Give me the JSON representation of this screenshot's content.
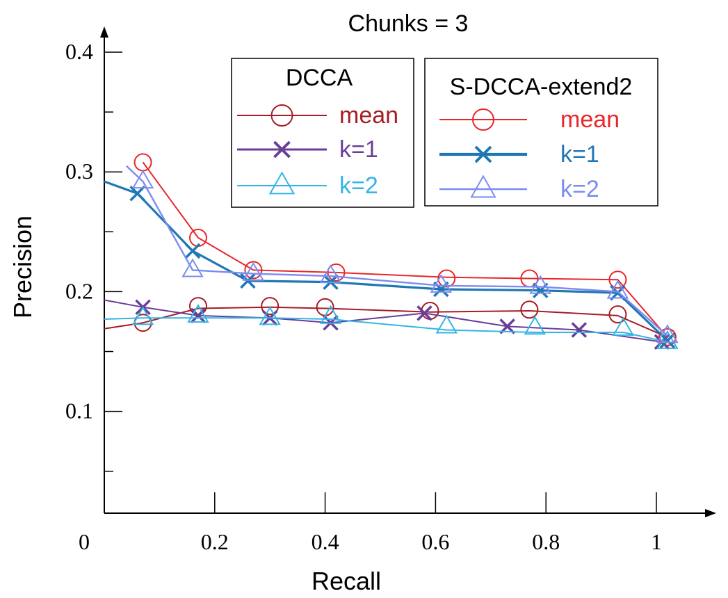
{
  "chart_data": {
    "type": "line",
    "title": "Chunks = 3",
    "xlabel": "Recall",
    "ylabel": "Precision",
    "xlim": [
      0,
      1.05
    ],
    "ylim": [
      0.015,
      0.42
    ],
    "xticks": [
      0,
      0.2,
      0.4,
      0.6,
      0.8,
      1
    ],
    "xtick_labels": [
      "0",
      "0.2",
      "0.4",
      "0.6",
      "0.8",
      "1"
    ],
    "yticks": [
      0.1,
      0.2,
      0.3,
      0.4
    ],
    "ytick_labels": [
      "0.1",
      "0.2",
      "0.3",
      "0.4"
    ],
    "grid": false,
    "legend_groups": [
      {
        "title": "DCCA",
        "entries": [
          {
            "label": "mean",
            "color": "#a51c24",
            "marker": "circle"
          },
          {
            "label": "k=1",
            "color": "#6a3d9a",
            "marker": "x"
          },
          {
            "label": "k=2",
            "color": "#33b5e5",
            "marker": "triangle"
          }
        ]
      },
      {
        "title": "S-DCCA-extend2",
        "entries": [
          {
            "label": "mean",
            "color": "#e8272b",
            "marker": "circle"
          },
          {
            "label": "k=1",
            "color": "#1f77b4",
            "marker": "x"
          },
          {
            "label": "k=2",
            "color": "#7b8cf0",
            "marker": "triangle"
          }
        ]
      }
    ],
    "series": [
      {
        "group": "DCCA",
        "name": "mean",
        "color": "#a51c24",
        "marker": "circle",
        "width": 2,
        "points": [
          [
            0.0,
            0.169
          ],
          [
            0.07,
            0.174
          ],
          [
            0.17,
            0.186
          ],
          [
            0.3,
            0.187
          ],
          [
            0.4,
            0.186
          ],
          [
            0.59,
            0.183
          ],
          [
            0.77,
            0.184
          ],
          [
            0.93,
            0.18
          ],
          [
            1.02,
            0.162
          ]
        ],
        "markers": [
          [
            0.07,
            0.174
          ],
          [
            0.17,
            0.188
          ],
          [
            0.3,
            0.188
          ],
          [
            0.4,
            0.187
          ],
          [
            0.59,
            0.184
          ],
          [
            0.77,
            0.185
          ],
          [
            0.93,
            0.181
          ],
          [
            1.02,
            0.162
          ]
        ]
      },
      {
        "group": "DCCA",
        "name": "k=1",
        "color": "#6a3d9a",
        "marker": "x",
        "width": 2,
        "points": [
          [
            0.0,
            0.193
          ],
          [
            0.07,
            0.187
          ],
          [
            0.17,
            0.18
          ],
          [
            0.3,
            0.178
          ],
          [
            0.41,
            0.174
          ],
          [
            0.58,
            0.182
          ],
          [
            0.73,
            0.171
          ],
          [
            0.86,
            0.168
          ],
          [
            1.01,
            0.158
          ]
        ],
        "markers": [
          [
            0.07,
            0.187
          ],
          [
            0.17,
            0.18
          ],
          [
            0.3,
            0.178
          ],
          [
            0.41,
            0.174
          ],
          [
            0.58,
            0.182
          ],
          [
            0.73,
            0.171
          ],
          [
            0.86,
            0.168
          ],
          [
            1.01,
            0.158
          ]
        ]
      },
      {
        "group": "DCCA",
        "name": "k=2",
        "color": "#33b5e5",
        "marker": "triangle",
        "width": 2,
        "points": [
          [
            0.0,
            0.177
          ],
          [
            0.07,
            0.178
          ],
          [
            0.17,
            0.178
          ],
          [
            0.3,
            0.178
          ],
          [
            0.41,
            0.177
          ],
          [
            0.62,
            0.168
          ],
          [
            0.78,
            0.166
          ],
          [
            0.94,
            0.166
          ],
          [
            1.02,
            0.158
          ]
        ],
        "markers": [
          [
            0.07,
            0.178
          ],
          [
            0.17,
            0.18
          ],
          [
            0.3,
            0.178
          ],
          [
            0.41,
            0.179
          ],
          [
            0.62,
            0.171
          ],
          [
            0.78,
            0.17
          ],
          [
            0.94,
            0.169
          ],
          [
            1.02,
            0.158
          ]
        ]
      },
      {
        "group": "S-DCCA-extend2",
        "name": "mean",
        "color": "#e8272b",
        "marker": "circle",
        "width": 2,
        "points": [
          [
            0.07,
            0.308
          ],
          [
            0.17,
            0.245
          ],
          [
            0.27,
            0.218
          ],
          [
            0.42,
            0.216
          ],
          [
            0.62,
            0.212
          ],
          [
            0.77,
            0.211
          ],
          [
            0.93,
            0.21
          ],
          [
            1.02,
            0.162
          ]
        ],
        "markers": [
          [
            0.07,
            0.308
          ],
          [
            0.17,
            0.245
          ],
          [
            0.27,
            0.218
          ],
          [
            0.42,
            0.216
          ],
          [
            0.62,
            0.211
          ],
          [
            0.77,
            0.211
          ],
          [
            0.93,
            0.21
          ],
          [
            1.02,
            0.162
          ]
        ]
      },
      {
        "group": "S-DCCA-extend2",
        "name": "k=1",
        "color": "#1f77b4",
        "marker": "x",
        "width": 3.2,
        "points": [
          [
            0.0,
            0.292
          ],
          [
            0.06,
            0.282
          ],
          [
            0.16,
            0.234
          ],
          [
            0.26,
            0.209
          ],
          [
            0.41,
            0.208
          ],
          [
            0.61,
            0.202
          ],
          [
            0.79,
            0.201
          ],
          [
            0.93,
            0.199
          ],
          [
            1.02,
            0.159
          ]
        ],
        "markers": [
          [
            0.06,
            0.282
          ],
          [
            0.16,
            0.234
          ],
          [
            0.26,
            0.209
          ],
          [
            0.41,
            0.208
          ],
          [
            0.61,
            0.202
          ],
          [
            0.79,
            0.201
          ],
          [
            0.93,
            0.199
          ],
          [
            1.02,
            0.159
          ]
        ]
      },
      {
        "group": "S-DCCA-extend2",
        "name": "k=2",
        "color": "#7b8cf0",
        "marker": "triangle",
        "width": 2.4,
        "points": [
          [
            0.04,
            0.305
          ],
          [
            0.07,
            0.292
          ],
          [
            0.16,
            0.218
          ],
          [
            0.27,
            0.215
          ],
          [
            0.41,
            0.213
          ],
          [
            0.61,
            0.205
          ],
          [
            0.79,
            0.204
          ],
          [
            0.93,
            0.2
          ],
          [
            1.02,
            0.163
          ]
        ],
        "markers": [
          [
            0.07,
            0.292
          ],
          [
            0.16,
            0.218
          ],
          [
            0.27,
            0.215
          ],
          [
            0.41,
            0.213
          ],
          [
            0.61,
            0.205
          ],
          [
            0.79,
            0.204
          ],
          [
            0.93,
            0.2
          ],
          [
            1.02,
            0.163
          ]
        ]
      }
    ]
  }
}
